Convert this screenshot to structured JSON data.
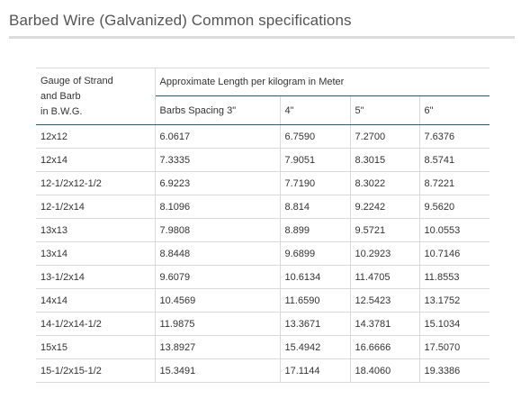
{
  "page": {
    "title": "Barbed Wire (Galvanized) Common specifications"
  },
  "table": {
    "gauge_header_lines": [
      "Gauge of Strand",
      "and Barb",
      "in B.W.G."
    ],
    "group_header": "Approximate Length per kilogram in Meter",
    "spacing_headers": [
      "Barbs Spacing 3\"",
      "4\"",
      "5\"",
      "6\""
    ],
    "rows": [
      {
        "gauge": "12x12",
        "values": [
          "6.0617",
          "6.7590",
          "7.2700",
          "7.6376"
        ]
      },
      {
        "gauge": "12x14",
        "values": [
          "7.3335",
          "7.9051",
          "8.3015",
          "8.5741"
        ]
      },
      {
        "gauge": "12-1/2x12-1/2",
        "values": [
          "6.9223",
          "7.7190",
          "8.3022",
          "8.7221"
        ]
      },
      {
        "gauge": "12-1/2x14",
        "values": [
          "8.1096",
          "8.814",
          "9.2242",
          "9.5620"
        ]
      },
      {
        "gauge": "13x13",
        "values": [
          "7.9808",
          "8.899",
          "9.5721",
          "10.0553"
        ]
      },
      {
        "gauge": "13x14",
        "values": [
          "8.8448",
          "9.6899",
          "10.2923",
          "10.7146"
        ]
      },
      {
        "gauge": "13-1/2x14",
        "values": [
          "9.6079",
          "10.6134",
          "11.4705",
          "11.8553"
        ]
      },
      {
        "gauge": "14x14",
        "values": [
          "10.4569",
          "11.6590",
          "12.5423",
          "13.1752"
        ]
      },
      {
        "gauge": "14-1/2x14-1/2",
        "values": [
          "11.9875",
          "13.3671",
          "14.3781",
          "15.1034"
        ]
      },
      {
        "gauge": "15x15",
        "values": [
          "13.8927",
          "15.4942",
          "16.6666",
          "17.5070"
        ]
      },
      {
        "gauge": "15-1/2x15-1/2",
        "values": [
          "15.3491",
          "17.1144",
          "18.4060",
          "19.3386"
        ]
      }
    ]
  }
}
